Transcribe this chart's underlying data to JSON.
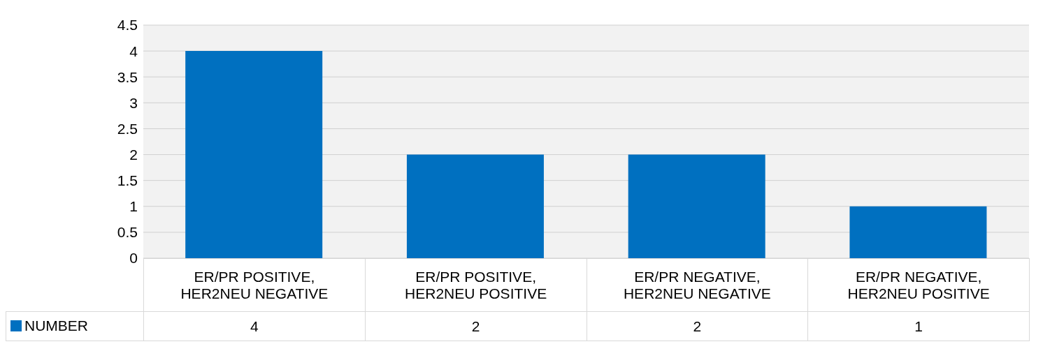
{
  "chart_data": {
    "type": "bar",
    "categories": [
      "ER/PR POSITIVE, HER2NEU NEGATIVE",
      "ER/PR POSITIVE, HER2NEU POSITIVE",
      "ER/PR NEGATIVE, HER2NEU NEGATIVE",
      "ER/PR NEGATIVE, HER2NEU POSITIVE"
    ],
    "series": [
      {
        "name": "NUMBER",
        "color": "#0070c0",
        "values": [
          4,
          2,
          2,
          1
        ]
      }
    ],
    "ylim": [
      0,
      4.5
    ],
    "yticks": [
      0,
      0.5,
      1,
      1.5,
      2,
      2.5,
      3,
      3.5,
      4,
      4.5
    ],
    "grid": "y",
    "legend": "bottom",
    "data_labels": true
  }
}
